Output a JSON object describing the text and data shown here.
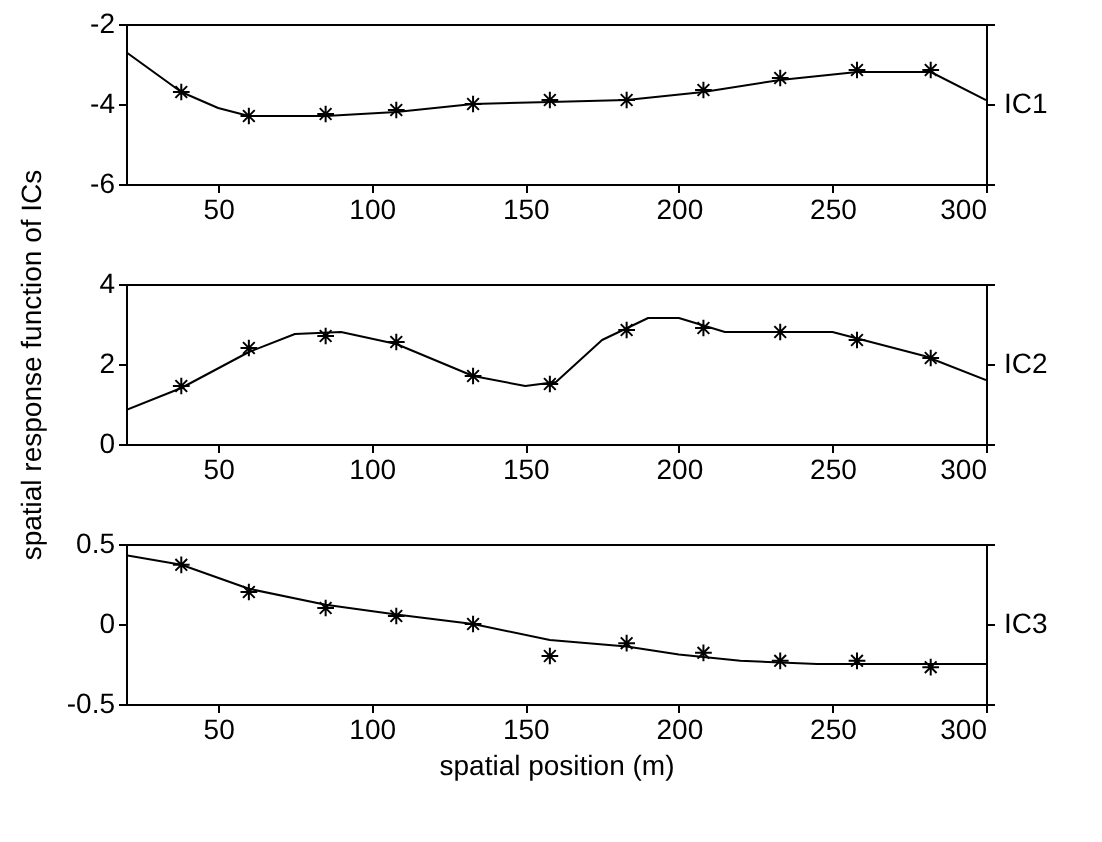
{
  "chart_data": [
    {
      "type": "line",
      "y2label": "IC1",
      "xlim": [
        20,
        300
      ],
      "xticks": [
        50,
        100,
        150,
        200,
        250,
        300
      ],
      "ylim": [
        -6,
        -2
      ],
      "yticks": [
        -6,
        -4,
        -2
      ],
      "series": [
        {
          "type": "line",
          "color": "#000000",
          "x": [
            20,
            38,
            50,
            60,
            85,
            108,
            133,
            158,
            183,
            208,
            233,
            258,
            282,
            300
          ],
          "values": [
            -2.7,
            -3.7,
            -4.1,
            -4.3,
            -4.3,
            -4.2,
            -4.0,
            -3.95,
            -3.9,
            -3.7,
            -3.4,
            -3.2,
            -3.2,
            -3.9
          ]
        },
        {
          "type": "scatter",
          "marker": "cross",
          "color": "#000000",
          "x": [
            38,
            60,
            85,
            108,
            133,
            158,
            183,
            208,
            233,
            258,
            282
          ],
          "values": [
            -3.7,
            -4.3,
            -4.25,
            -4.15,
            -4.0,
            -3.9,
            -3.9,
            -3.65,
            -3.35,
            -3.15,
            -3.15
          ]
        }
      ]
    },
    {
      "type": "line",
      "ylabel": "spatial response function of ICs",
      "y2label": "IC2",
      "xlim": [
        20,
        300
      ],
      "xticks": [
        50,
        100,
        150,
        200,
        250,
        300
      ],
      "ylim": [
        0,
        4
      ],
      "yticks": [
        0,
        2,
        4
      ],
      "series": [
        {
          "type": "line",
          "color": "#000000",
          "x": [
            20,
            38,
            60,
            75,
            90,
            108,
            133,
            150,
            160,
            175,
            190,
            200,
            215,
            250,
            280,
            300
          ],
          "values": [
            0.85,
            1.4,
            2.3,
            2.75,
            2.8,
            2.5,
            1.7,
            1.45,
            1.55,
            2.6,
            3.15,
            3.15,
            2.8,
            2.8,
            2.2,
            1.6
          ]
        },
        {
          "type": "scatter",
          "marker": "cross",
          "color": "#000000",
          "x": [
            38,
            60,
            85,
            108,
            133,
            158,
            183,
            208,
            233,
            258,
            282
          ],
          "values": [
            1.45,
            2.4,
            2.7,
            2.55,
            1.7,
            1.5,
            2.85,
            2.9,
            2.8,
            2.6,
            2.15
          ]
        }
      ]
    },
    {
      "type": "line",
      "xlabel": "spatial position (m)",
      "y2label": "IC3",
      "xlim": [
        20,
        300
      ],
      "xticks": [
        50,
        100,
        150,
        200,
        250,
        300
      ],
      "ylim": [
        -0.5,
        0.5
      ],
      "yticks": [
        -0.5,
        0,
        0.5
      ],
      "series": [
        {
          "type": "line",
          "color": "#000000",
          "x": [
            20,
            38,
            60,
            85,
            108,
            133,
            158,
            183,
            200,
            220,
            245,
            300
          ],
          "values": [
            0.43,
            0.37,
            0.22,
            0.12,
            0.06,
            0.0,
            -0.1,
            -0.14,
            -0.19,
            -0.23,
            -0.25,
            -0.25
          ]
        },
        {
          "type": "scatter",
          "marker": "cross",
          "color": "#000000",
          "x": [
            38,
            60,
            85,
            108,
            133,
            158,
            183,
            208,
            233,
            258,
            282
          ],
          "values": [
            0.37,
            0.2,
            0.1,
            0.05,
            0.0,
            -0.2,
            -0.12,
            -0.18,
            -0.23,
            -0.23,
            -0.27
          ]
        }
      ]
    }
  ]
}
